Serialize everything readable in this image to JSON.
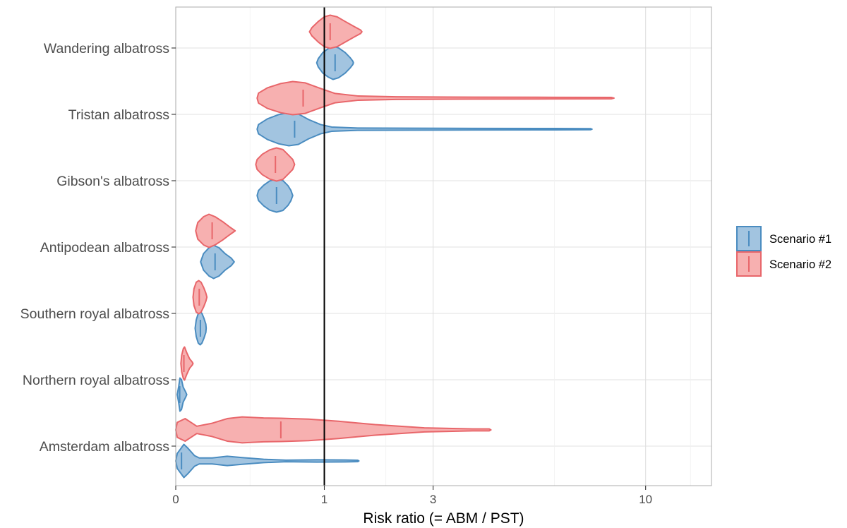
{
  "chart_data": {
    "type": "violin",
    "title": "",
    "xlabel": "Risk ratio (= ABM / PST)",
    "ylabel": "",
    "x_scale": "sqrt",
    "xlim": [
      0,
      13
    ],
    "x_ticks": [
      {
        "value": 0,
        "label": "0"
      },
      {
        "value": 1,
        "label": "1"
      },
      {
        "value": 3,
        "label": "3"
      },
      {
        "value": 10,
        "label": "10"
      }
    ],
    "reference_line": 1,
    "grid": true,
    "legend_position": "right",
    "categories": [
      "Wandering albatross",
      "Tristan albatross",
      "Gibson's albatross",
      "Antipodean albatross",
      "Southern royal albatross",
      "Northern royal albatross",
      "Amsterdam albatross"
    ],
    "series": [
      {
        "name": "Scenario #1",
        "color": "#4a8cc0",
        "fill": "#a2c4e0",
        "violins": [
          {
            "category": "Wandering albatross",
            "median": 1.15,
            "profile": [
              [
                0.9,
                0.0
              ],
              [
                0.92,
                0.25
              ],
              [
                0.98,
                0.62
              ],
              [
                1.05,
                0.85
              ],
              [
                1.12,
                1.0
              ],
              [
                1.2,
                0.9
              ],
              [
                1.3,
                0.62
              ],
              [
                1.38,
                0.3
              ],
              [
                1.42,
                0.1
              ],
              [
                1.43,
                0.0
              ]
            ]
          },
          {
            "category": "Tristan albatross",
            "median": 0.64,
            "profile": [
              [
                0.3,
                0.0
              ],
              [
                0.31,
                0.28
              ],
              [
                0.38,
                0.62
              ],
              [
                0.48,
                0.88
              ],
              [
                0.58,
                1.0
              ],
              [
                0.68,
                0.92
              ],
              [
                0.8,
                0.58
              ],
              [
                0.95,
                0.28
              ],
              [
                1.1,
                0.13
              ],
              [
                1.5,
                0.07
              ],
              [
                2.5,
                0.06
              ],
              [
                4.0,
                0.05
              ],
              [
                6.5,
                0.04
              ],
              [
                7.8,
                0.03
              ],
              [
                7.85,
                0.0
              ]
            ]
          },
          {
            "category": "Gibson's albatross",
            "median": 0.46,
            "profile": [
              [
                0.3,
                0.0
              ],
              [
                0.31,
                0.3
              ],
              [
                0.35,
                0.62
              ],
              [
                0.4,
                0.88
              ],
              [
                0.46,
                1.0
              ],
              [
                0.52,
                0.9
              ],
              [
                0.57,
                0.6
              ],
              [
                0.6,
                0.32
              ],
              [
                0.62,
                0.0
              ]
            ]
          },
          {
            "category": "Antipodean albatross",
            "median": 0.07,
            "profile": [
              [
                0.028,
                0.0
              ],
              [
                0.035,
                0.5
              ],
              [
                0.05,
                0.85
              ],
              [
                0.065,
                1.0
              ],
              [
                0.085,
                0.85
              ],
              [
                0.11,
                0.5
              ],
              [
                0.14,
                0.22
              ],
              [
                0.155,
                0.0
              ]
            ]
          },
          {
            "category": "Southern royal albatross",
            "median": 0.0275,
            "profile": [
              [
                0.017,
                0.0
              ],
              [
                0.019,
                0.5
              ],
              [
                0.023,
                0.9
              ],
              [
                0.027,
                1.0
              ],
              [
                0.031,
                0.9
              ],
              [
                0.036,
                0.6
              ],
              [
                0.041,
                0.25
              ],
              [
                0.042,
                0.0
              ]
            ]
          },
          {
            "category": "Northern royal albatross",
            "median": 0.0007,
            "profile": [
              [
                0.0001,
                0.0
              ],
              [
                0.0004,
                0.5
              ],
              [
                0.0008,
                1.0
              ],
              [
                0.0015,
                0.9
              ],
              [
                0.0025,
                0.45
              ],
              [
                0.0045,
                0.15
              ],
              [
                0.0055,
                0.0
              ]
            ]
          },
          {
            "category": "Amsterdam albatross",
            "median": 0.0015,
            "profile": [
              [
                0.0,
                0.0
              ],
              [
                0.0001,
                0.45
              ],
              [
                0.003,
                1.0
              ],
              [
                0.0065,
                0.78
              ],
              [
                0.016,
                0.32
              ],
              [
                0.025,
                0.18
              ],
              [
                0.06,
                0.18
              ],
              [
                0.12,
                0.28
              ],
              [
                0.2,
                0.2
              ],
              [
                0.35,
                0.1
              ],
              [
                0.55,
                0.05
              ],
              [
                0.9,
                0.07
              ],
              [
                1.3,
                0.06
              ],
              [
                1.5,
                0.04
              ],
              [
                1.52,
                0.0
              ]
            ]
          }
        ]
      },
      {
        "name": "Scenario #2",
        "color": "#e8666a",
        "fill": "#f7b0b0",
        "violins": [
          {
            "category": "Wandering albatross",
            "median": 1.08,
            "profile": [
              [
                0.81,
                0.0
              ],
              [
                0.84,
                0.25
              ],
              [
                0.92,
                0.62
              ],
              [
                1.0,
                0.9
              ],
              [
                1.08,
                1.0
              ],
              [
                1.18,
                0.9
              ],
              [
                1.3,
                0.62
              ],
              [
                1.45,
                0.3
              ],
              [
                1.55,
                0.1
              ],
              [
                1.57,
                0.0
              ]
            ]
          },
          {
            "category": "Tristan albatross",
            "median": 0.735,
            "profile": [
              [
                0.3,
                0.0
              ],
              [
                0.31,
                0.3
              ],
              [
                0.38,
                0.62
              ],
              [
                0.5,
                0.88
              ],
              [
                0.62,
                1.0
              ],
              [
                0.76,
                0.92
              ],
              [
                0.95,
                0.58
              ],
              [
                1.15,
                0.28
              ],
              [
                1.5,
                0.13
              ],
              [
                2.2,
                0.08
              ],
              [
                4.0,
                0.06
              ],
              [
                6.5,
                0.05
              ],
              [
                8.6,
                0.04
              ],
              [
                8.7,
                0.0
              ]
            ]
          },
          {
            "category": "Gibson's albatross",
            "median": 0.45,
            "profile": [
              [
                0.29,
                0.0
              ],
              [
                0.3,
                0.3
              ],
              [
                0.34,
                0.62
              ],
              [
                0.4,
                0.88
              ],
              [
                0.46,
                1.0
              ],
              [
                0.52,
                0.9
              ],
              [
                0.57,
                0.6
              ],
              [
                0.62,
                0.3
              ],
              [
                0.64,
                0.0
              ]
            ]
          },
          {
            "category": "Antipodean albatross",
            "median": 0.06,
            "profile": [
              [
                0.018,
                0.0
              ],
              [
                0.022,
                0.5
              ],
              [
                0.035,
                0.85
              ],
              [
                0.05,
                1.0
              ],
              [
                0.07,
                0.85
              ],
              [
                0.1,
                0.55
              ],
              [
                0.13,
                0.25
              ],
              [
                0.16,
                0.0
              ]
            ]
          },
          {
            "category": "Southern royal albatross",
            "median": 0.025,
            "profile": [
              [
                0.0135,
                0.0
              ],
              [
                0.015,
                0.5
              ],
              [
                0.019,
                0.9
              ],
              [
                0.024,
                1.0
              ],
              [
                0.029,
                0.9
              ],
              [
                0.035,
                0.6
              ],
              [
                0.041,
                0.25
              ],
              [
                0.044,
                0.0
              ]
            ]
          },
          {
            "category": "Northern royal albatross",
            "median": 0.003,
            "profile": [
              [
                0.0012,
                0.0
              ],
              [
                0.0016,
                0.5
              ],
              [
                0.0026,
                0.9
              ],
              [
                0.0035,
                1.0
              ],
              [
                0.0055,
                0.65
              ],
              [
                0.0085,
                0.3
              ],
              [
                0.0125,
                0.08
              ],
              [
                0.0135,
                0.0
              ]
            ]
          },
          {
            "category": "Amsterdam albatross",
            "median": 0.5,
            "profile": [
              [
                0.0,
                0.0
              ],
              [
                0.0001,
                0.45
              ],
              [
                0.004,
                0.68
              ],
              [
                0.02,
                0.22
              ],
              [
                0.06,
                0.4
              ],
              [
                0.12,
                0.68
              ],
              [
                0.2,
                0.78
              ],
              [
                0.35,
                0.72
              ],
              [
                0.5,
                0.7
              ],
              [
                0.8,
                0.65
              ],
              [
                1.2,
                0.52
              ],
              [
                1.8,
                0.32
              ],
              [
                2.8,
                0.12
              ],
              [
                4.0,
                0.06
              ],
              [
                4.45,
                0.06
              ],
              [
                4.5,
                0.0
              ]
            ]
          }
        ]
      }
    ]
  }
}
